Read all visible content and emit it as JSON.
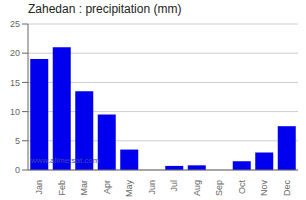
{
  "chart_data": {
    "type": "bar",
    "title": "Zahedan : precipitation (mm)",
    "categories": [
      "Jan",
      "Feb",
      "Mar",
      "Apr",
      "May",
      "Jun",
      "Jul",
      "Aug",
      "Sep",
      "Oct",
      "Nov",
      "Dec"
    ],
    "values": [
      19,
      21,
      13.5,
      9.5,
      3.5,
      0,
      0.7,
      0.8,
      0,
      1.5,
      3,
      7.5
    ],
    "color": "#0000ee",
    "ylim": [
      0,
      25
    ],
    "yticks": [
      0,
      5,
      10,
      15,
      20,
      25
    ],
    "grid": true,
    "annotations": [
      "www.allmetsat.com"
    ]
  }
}
